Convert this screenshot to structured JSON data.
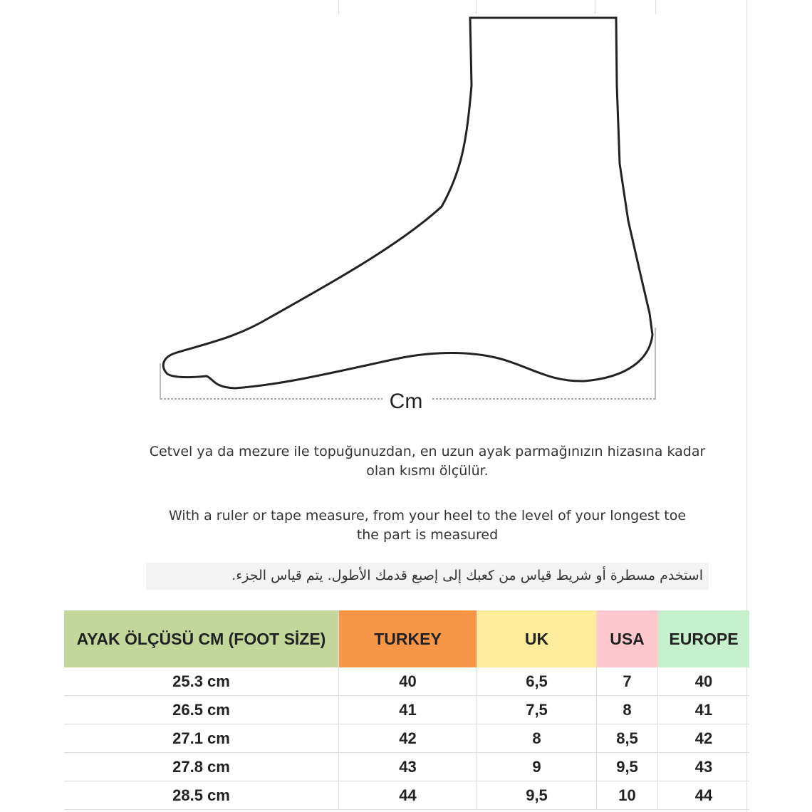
{
  "diagram": {
    "unit_label": "Cm"
  },
  "instructions": {
    "turkish_line1": "Cetvel ya da mezure ile topuğunuzdan, en uzun ayak parmağınızın hizasına kadar",
    "turkish_line2": "olan kısmı ölçülür.",
    "english_line1": "With a ruler or tape measure, from your heel to the level of your longest toe",
    "english_line2": "the part is measured",
    "arabic": "استخدم مسطرة أو شريط قياس من كعبك إلى إصبع قدمك الأطول. يتم قياس الجزء."
  },
  "table": {
    "headers": [
      {
        "label": "AYAK ÖLÇÜSÜ CM (FOOT SİZE)",
        "color": "#c4d79b"
      },
      {
        "label": "TURKEY",
        "color": "#f79646"
      },
      {
        "label": "UK",
        "color": "#ffeb9c"
      },
      {
        "label": "USA",
        "color": "#ffc7ce"
      },
      {
        "label": "EUROPE",
        "color": "#c6efce"
      }
    ],
    "rows": [
      [
        "25.3 cm",
        "40",
        "6,5",
        "7",
        "40"
      ],
      [
        "26.5 cm",
        "41",
        "7,5",
        "8",
        "41"
      ],
      [
        "27.1 cm",
        "42",
        "8",
        "8,5",
        "42"
      ],
      [
        "27.8 cm",
        "43",
        "9",
        "9,5",
        "43"
      ],
      [
        "28.5 cm",
        "44",
        "9,5",
        "10",
        "44"
      ]
    ]
  }
}
